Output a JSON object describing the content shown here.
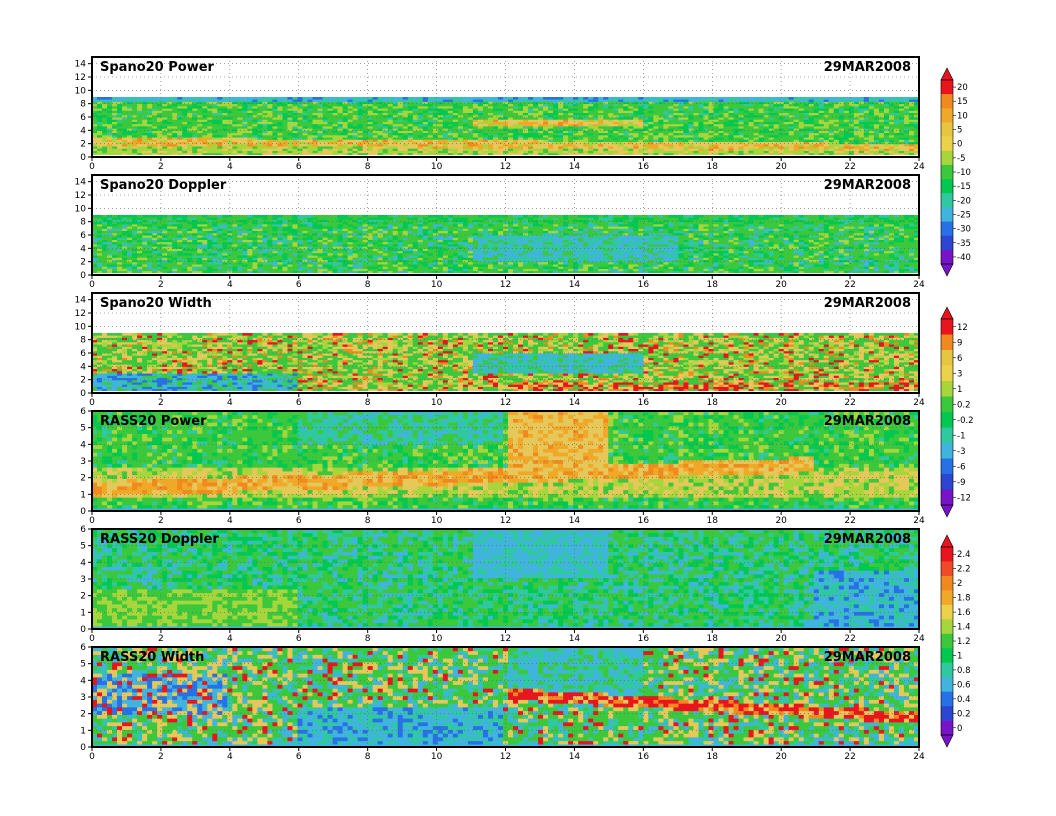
{
  "chart_data": [
    {
      "type": "heatmap",
      "title": "Spano20 Power",
      "date": "29MAR2008",
      "x_ticks": [
        "0",
        "2",
        "4",
        "6",
        "8",
        "10",
        "12",
        "14",
        "16",
        "18",
        "20",
        "22",
        "24"
      ],
      "y_ticks": [
        "0",
        "2",
        "4",
        "6",
        "8",
        "10",
        "12",
        "14"
      ],
      "xlim": [
        0,
        24
      ],
      "ylim": [
        0,
        15
      ],
      "data_top": 9,
      "grid": true,
      "colorbar": {
        "labels": [
          "20",
          "15",
          "10",
          "5",
          "0",
          "-5",
          "-10",
          "-15",
          "-20",
          "-25",
          "-30",
          "-35",
          "-40"
        ],
        "colors": [
          "#e8141e",
          "#f08a1e",
          "#f0a828",
          "#e6c640",
          "#ecd24a",
          "#a6d63c",
          "#3cc83c",
          "#00c850",
          "#30c8a0",
          "#40b4dc",
          "#2870e6",
          "#2c46d2",
          "#7814c8"
        ]
      }
    },
    {
      "type": "heatmap",
      "title": "Spano20 Doppler",
      "date": "29MAR2008",
      "x_ticks": [
        "0",
        "2",
        "4",
        "6",
        "8",
        "10",
        "12",
        "14",
        "16",
        "18",
        "20",
        "22",
        "24"
      ],
      "y_ticks": [
        "0",
        "2",
        "4",
        "6",
        "8",
        "10",
        "12",
        "14"
      ],
      "xlim": [
        0,
        24
      ],
      "ylim": [
        0,
        15
      ],
      "data_top": 9,
      "grid": true
    },
    {
      "type": "heatmap",
      "title": "Spano20 Width",
      "date": "29MAR2008",
      "x_ticks": [
        "0",
        "2",
        "4",
        "6",
        "8",
        "10",
        "12",
        "14",
        "16",
        "18",
        "20",
        "22",
        "24"
      ],
      "y_ticks": [
        "0",
        "2",
        "4",
        "6",
        "8",
        "10",
        "12",
        "14"
      ],
      "xlim": [
        0,
        24
      ],
      "ylim": [
        0,
        15
      ],
      "data_top": 9,
      "grid": true,
      "colorbar": {
        "labels": [
          "12",
          "9",
          "6",
          "3",
          "1",
          "0.2",
          "-0.2",
          "-1",
          "-3",
          "-6",
          "-9",
          "-12"
        ],
        "colors": [
          "#e8141e",
          "#f08a1e",
          "#e6c640",
          "#ecd24a",
          "#a6d63c",
          "#3cc83c",
          "#00c850",
          "#30c8a0",
          "#40b4dc",
          "#2870e6",
          "#2c46d2",
          "#7814c8"
        ]
      }
    },
    {
      "type": "heatmap",
      "title": "RASS20 Power",
      "date": "29MAR2008",
      "x_ticks": [
        "0",
        "2",
        "4",
        "6",
        "8",
        "10",
        "12",
        "14",
        "16",
        "18",
        "20",
        "22",
        "24"
      ],
      "y_ticks": [
        "0",
        "1",
        "2",
        "3",
        "4",
        "5",
        "6"
      ],
      "xlim": [
        0,
        24
      ],
      "ylim": [
        0,
        6
      ],
      "data_top": 6,
      "grid": true
    },
    {
      "type": "heatmap",
      "title": "RASS20 Doppler",
      "date": "29MAR2008",
      "x_ticks": [
        "0",
        "2",
        "4",
        "6",
        "8",
        "10",
        "12",
        "14",
        "16",
        "18",
        "20",
        "22",
        "24"
      ],
      "y_ticks": [
        "0",
        "1",
        "2",
        "3",
        "4",
        "5",
        "6"
      ],
      "xlim": [
        0,
        24
      ],
      "ylim": [
        0,
        6
      ],
      "data_top": 6,
      "grid": true,
      "colorbar": {
        "labels": [
          "2.4",
          "2.2",
          "2",
          "1.8",
          "1.6",
          "1.4",
          "1.2",
          "1",
          "0.8",
          "0.6",
          "0.4",
          "0.2",
          "0"
        ],
        "colors": [
          "#e8141e",
          "#f04a28",
          "#f08a1e",
          "#f0a828",
          "#ecd24a",
          "#a6d63c",
          "#3cc83c",
          "#00c850",
          "#30c8a0",
          "#40b4dc",
          "#2870e6",
          "#2c46d2",
          "#7814c8"
        ]
      }
    },
    {
      "type": "heatmap",
      "title": "RASS20 Width",
      "date": "29MAR2008",
      "x_ticks": [
        "0",
        "2",
        "4",
        "6",
        "8",
        "10",
        "12",
        "14",
        "16",
        "18",
        "20",
        "22",
        "24"
      ],
      "y_ticks": [
        "0",
        "1",
        "2",
        "3",
        "4",
        "5",
        "6"
      ],
      "xlim": [
        0,
        24
      ],
      "ylim": [
        0,
        6
      ],
      "data_top": 6,
      "grid": true
    }
  ]
}
